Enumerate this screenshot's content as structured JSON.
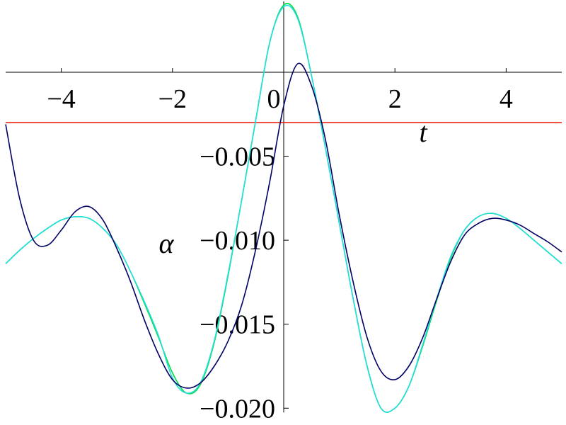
{
  "chart_data": {
    "type": "line",
    "x_label": "t",
    "y_label": "α",
    "xlim": [
      -5,
      5
    ],
    "ylim": [
      -0.021,
      0.0043
    ],
    "xticks": [
      {
        "value": -4,
        "label": "−4"
      },
      {
        "value": -2,
        "label": "−2"
      },
      0,
      2,
      4
    ],
    "yticks": [
      {
        "value": -0.005,
        "label": "−0.005"
      },
      {
        "value": -0.01,
        "label": "−0.010"
      },
      {
        "value": -0.015,
        "label": "−0.015"
      },
      {
        "value": -0.02,
        "label": "−0.020"
      }
    ],
    "x": [
      -5,
      -4.75,
      -4.5,
      -4.25,
      -4,
      -3.75,
      -3.5,
      -3.25,
      -3,
      -2.75,
      -2.5,
      -2.25,
      -2,
      -1.75,
      -1.5,
      -1.25,
      -1,
      -0.75,
      -0.5,
      -0.25,
      0,
      0.25,
      0.5,
      0.75,
      1,
      1.25,
      1.5,
      1.75,
      2,
      2.25,
      2.5,
      2.75,
      3,
      3.25,
      3.5,
      3.75,
      4,
      4.25,
      4.5,
      4.75,
      5
    ],
    "series": [
      {
        "color": "#ee1100",
        "x": [
          -5,
          5
        ],
        "values": [
          -0.003,
          -0.003
        ]
      },
      {
        "color": "#00dd44",
        "values": [
          -0.0114,
          -0.0106,
          -0.0099,
          -0.0093,
          -0.0088,
          -0.0086,
          -0.0087,
          -0.0093,
          -0.0103,
          -0.0119,
          -0.0138,
          -0.0158,
          -0.0179,
          -0.0191,
          -0.0186,
          -0.0161,
          -0.0121,
          -0.0075,
          -0.0028,
          0.0018,
          0.004,
          0.0033,
          -0.0002,
          -0.0045,
          -0.009,
          -0.0135,
          -0.0175,
          -0.02,
          -0.02,
          -0.0187,
          -0.0163,
          -0.0136,
          -0.0111,
          -0.0094,
          -0.0086,
          -0.0084,
          -0.0087,
          -0.0093,
          -0.01,
          -0.0107,
          -0.0114
        ]
      },
      {
        "color": "#22dddd",
        "values": [
          -0.0114,
          -0.0106,
          -0.0099,
          -0.0093,
          -0.0088,
          -0.0086,
          -0.0087,
          -0.0093,
          -0.0103,
          -0.0119,
          -0.0137,
          -0.0157,
          -0.0182,
          -0.0191,
          -0.0185,
          -0.016,
          -0.012,
          -0.0075,
          -0.0028,
          0.0018,
          0.0039,
          0.0032,
          -0.0002,
          -0.0045,
          -0.009,
          -0.0135,
          -0.0175,
          -0.02,
          -0.02,
          -0.0187,
          -0.0162,
          -0.0135,
          -0.011,
          -0.0094,
          -0.0086,
          -0.0084,
          -0.0087,
          -0.0093,
          -0.01,
          -0.0107,
          -0.0114
        ]
      },
      {
        "color": "#000066",
        "values": [
          -0.0031,
          -0.0075,
          -0.01,
          -0.0103,
          -0.0094,
          -0.0083,
          -0.008,
          -0.0088,
          -0.0105,
          -0.0125,
          -0.0148,
          -0.0168,
          -0.0183,
          -0.0188,
          -0.0185,
          -0.0175,
          -0.016,
          -0.0138,
          -0.0105,
          -0.0065,
          -0.002,
          0.0005,
          -0.0008,
          -0.004,
          -0.0085,
          -0.0125,
          -0.0158,
          -0.0178,
          -0.0183,
          -0.0175,
          -0.0158,
          -0.0135,
          -0.0113,
          -0.0097,
          -0.009,
          -0.0087,
          -0.0088,
          -0.0091,
          -0.0096,
          -0.0101,
          -0.0107
        ]
      }
    ]
  }
}
